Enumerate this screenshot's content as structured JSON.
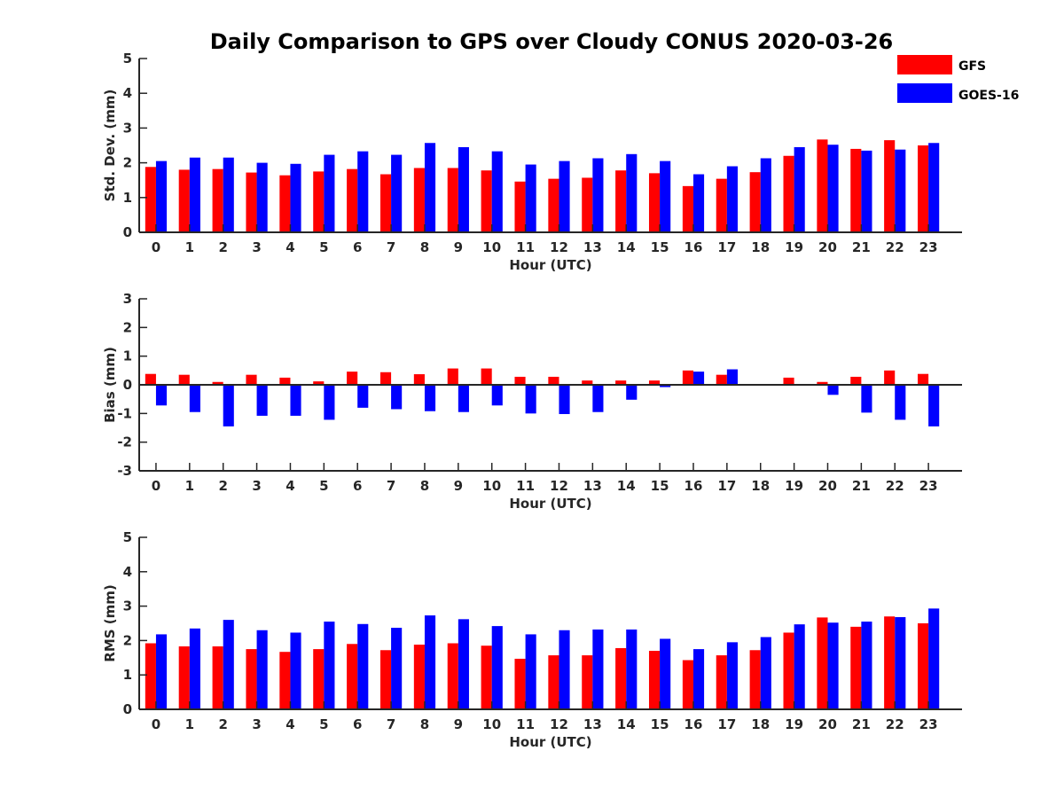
{
  "figure_title": "Daily Comparison to GPS over Cloudy CONUS 2020-03-26",
  "legend": [
    {
      "name": "GFS",
      "color": "#ff0000"
    },
    {
      "name": "GOES-16",
      "color": "#0000ff"
    }
  ],
  "chart_data": [
    {
      "type": "bar",
      "title": "",
      "xlabel": "Hour (UTC)",
      "ylabel": "Std. Dev. (mm)",
      "ylim": [
        0,
        5
      ],
      "yticks": [
        0,
        1,
        2,
        3,
        4,
        5
      ],
      "categories": [
        "0",
        "1",
        "2",
        "3",
        "4",
        "5",
        "6",
        "7",
        "8",
        "9",
        "10",
        "11",
        "12",
        "13",
        "14",
        "15",
        "16",
        "17",
        "18",
        "19",
        "20",
        "21",
        "22",
        "23"
      ],
      "series": [
        {
          "name": "GFS",
          "color": "#ff0000",
          "values": [
            1.88,
            1.8,
            1.82,
            1.72,
            1.64,
            1.75,
            1.82,
            1.67,
            1.85,
            1.85,
            1.78,
            1.46,
            1.54,
            1.57,
            1.78,
            1.7,
            1.33,
            1.54,
            1.73,
            2.2,
            2.67,
            2.4,
            2.65,
            2.5
          ]
        },
        {
          "name": "GOES-16",
          "color": "#0000ff",
          "values": [
            2.05,
            2.15,
            2.15,
            2.0,
            1.97,
            2.23,
            2.33,
            2.23,
            2.57,
            2.45,
            2.33,
            1.95,
            2.05,
            2.13,
            2.25,
            2.05,
            1.67,
            1.9,
            2.13,
            2.45,
            2.52,
            2.35,
            2.38,
            2.57
          ]
        }
      ]
    },
    {
      "type": "bar",
      "title": "",
      "xlabel": "Hour (UTC)",
      "ylabel": "Bias (mm)",
      "ylim": [
        -3,
        3
      ],
      "yticks": [
        -3,
        -2,
        -1,
        0,
        1,
        2,
        3
      ],
      "categories": [
        "0",
        "1",
        "2",
        "3",
        "4",
        "5",
        "6",
        "7",
        "8",
        "9",
        "10",
        "11",
        "12",
        "13",
        "14",
        "15",
        "16",
        "17",
        "18",
        "19",
        "20",
        "21",
        "22",
        "23"
      ],
      "series": [
        {
          "name": "GFS",
          "color": "#ff0000",
          "values": [
            0.38,
            0.35,
            0.1,
            0.35,
            0.25,
            0.12,
            0.46,
            0.44,
            0.37,
            0.57,
            0.57,
            0.28,
            0.28,
            0.15,
            0.15,
            0.15,
            0.5,
            0.35,
            0.03,
            0.25,
            0.1,
            0.28,
            0.5,
            0.38
          ]
        },
        {
          "name": "GOES-16",
          "color": "#0000ff",
          "values": [
            -0.72,
            -0.95,
            -1.45,
            -1.08,
            -1.08,
            -1.22,
            -0.8,
            -0.85,
            -0.92,
            -0.95,
            -0.72,
            -1.0,
            -1.02,
            -0.95,
            -0.52,
            -0.08,
            0.46,
            0.54,
            0.01,
            0.0,
            -0.35,
            -0.97,
            -1.22,
            -1.45
          ]
        }
      ]
    },
    {
      "type": "bar",
      "title": "",
      "xlabel": "Hour (UTC)",
      "ylabel": "RMS (mm)",
      "ylim": [
        0,
        5
      ],
      "yticks": [
        0,
        1,
        2,
        3,
        4,
        5
      ],
      "categories": [
        "0",
        "1",
        "2",
        "3",
        "4",
        "5",
        "6",
        "7",
        "8",
        "9",
        "10",
        "11",
        "12",
        "13",
        "14",
        "15",
        "16",
        "17",
        "18",
        "19",
        "20",
        "21",
        "22",
        "23"
      ],
      "series": [
        {
          "name": "GFS",
          "color": "#ff0000",
          "values": [
            1.92,
            1.83,
            1.83,
            1.75,
            1.67,
            1.75,
            1.9,
            1.72,
            1.88,
            1.92,
            1.85,
            1.47,
            1.57,
            1.57,
            1.78,
            1.7,
            1.43,
            1.57,
            1.72,
            2.23,
            2.67,
            2.4,
            2.7,
            2.5
          ]
        },
        {
          "name": "GOES-16",
          "color": "#0000ff",
          "values": [
            2.18,
            2.35,
            2.6,
            2.3,
            2.23,
            2.55,
            2.48,
            2.37,
            2.73,
            2.62,
            2.42,
            2.18,
            2.3,
            2.32,
            2.32,
            2.05,
            1.75,
            1.95,
            2.1,
            2.47,
            2.52,
            2.55,
            2.68,
            2.93
          ]
        }
      ]
    }
  ]
}
